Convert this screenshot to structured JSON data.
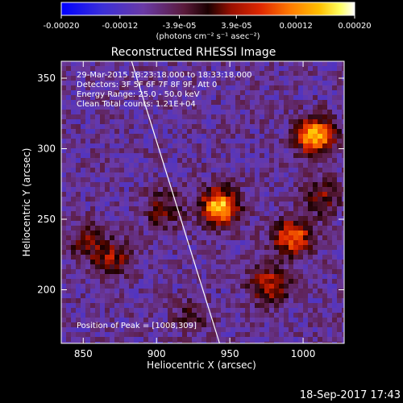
{
  "colorbar": {
    "ticks": [
      {
        "value": -0.0002,
        "label": "-0.00020"
      },
      {
        "value": -0.00012,
        "label": "-0.00012"
      },
      {
        "value": -3.9e-05,
        "label": "-3.9e-05"
      },
      {
        "value": 3.9e-05,
        "label": "3.9e-05"
      },
      {
        "value": 0.00012,
        "label": "0.00012"
      },
      {
        "value": 0.0002,
        "label": "0.00020"
      }
    ],
    "range": [
      -0.0002,
      0.0002
    ],
    "unit_label": "(photons cm⁻² s⁻¹ asec⁻²)",
    "colors": [
      "#0000ff",
      "#4b2fbf",
      "#6f3fa8",
      "#7a1f2a",
      "#c01808",
      "#ff5a00",
      "#ffb000",
      "#ffff40",
      "#ffffff"
    ]
  },
  "chart_data": {
    "type": "heatmap",
    "title": "Reconstructed RHESSI Image",
    "xlabel": "Heliocentric X (arcsec)",
    "ylabel": "Heliocentric Y (arcsec)",
    "xlim": [
      835,
      1028
    ],
    "ylim": [
      162,
      362
    ],
    "xticks": [
      850,
      900,
      950,
      1000
    ],
    "yticks": [
      200,
      250,
      300,
      350
    ],
    "annotations": [
      "29-Mar-2015 18:23:18.000 to 18:33:18.000",
      "Detectors: 3F 5F 6F 7F 8F 9F, Att 0",
      "Energy Range: 25.0 - 50.0 keV",
      "Clean    Total counts: 1.21E+04"
    ],
    "peak_label": "Position of Peak = [1008,309]",
    "limb": {
      "x_top": 883,
      "x_bottom": 943
    },
    "sources": [
      {
        "x": 943,
        "y": 259,
        "intensity": 0.0002
      },
      {
        "x": 1008,
        "y": 309,
        "intensity": 0.0002
      },
      {
        "x": 993,
        "y": 237,
        "intensity": 0.00016
      },
      {
        "x": 977,
        "y": 203,
        "intensity": 0.00012
      },
      {
        "x": 870,
        "y": 222,
        "intensity": 9e-05
      },
      {
        "x": 905,
        "y": 257,
        "intensity": 8e-05
      },
      {
        "x": 852,
        "y": 234,
        "intensity": 7e-05
      },
      {
        "x": 925,
        "y": 182,
        "intensity": 5e-05
      },
      {
        "x": 1012,
        "y": 266,
        "intensity": 8e-05
      }
    ]
  },
  "footer": {
    "timestamp": "18-Sep-2017 17:43"
  }
}
